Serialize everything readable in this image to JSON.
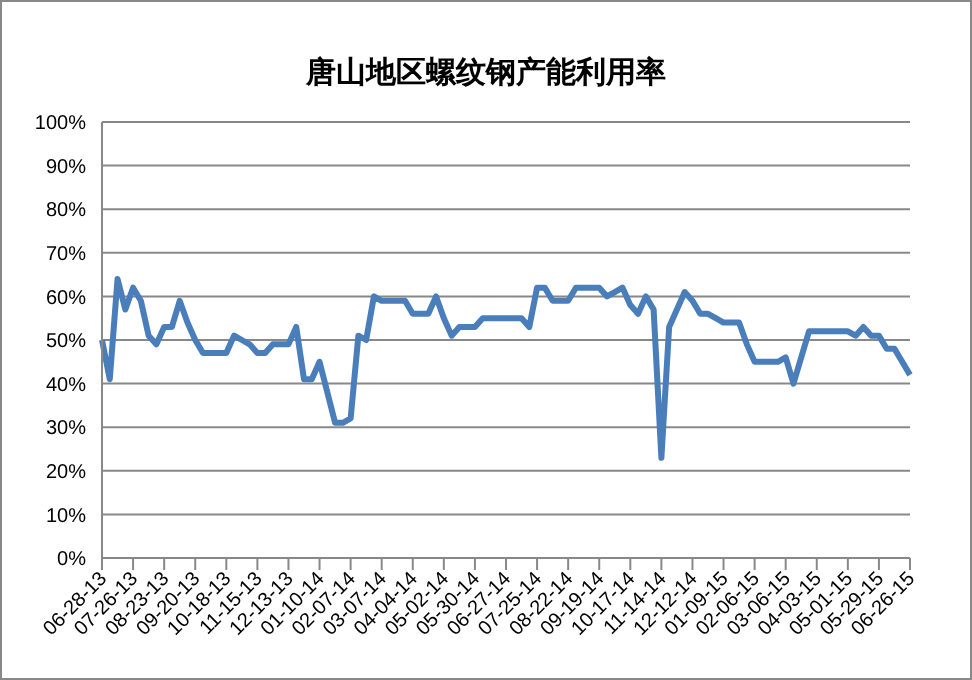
{
  "chart_data": {
    "type": "line",
    "title": "唐山地区螺纹钢产能利用率",
    "categories": [
      "06-28-13",
      null,
      null,
      null,
      "07-26-13",
      null,
      null,
      null,
      "08-23-13",
      null,
      null,
      null,
      "09-20-13",
      null,
      null,
      null,
      "10-18-13",
      null,
      null,
      null,
      "11-15-13",
      null,
      null,
      null,
      "12-13-13",
      null,
      null,
      null,
      "01-10-14",
      null,
      null,
      null,
      "02-07-14",
      null,
      null,
      null,
      "03-07-14",
      null,
      null,
      null,
      "04-04-14",
      null,
      null,
      null,
      "05-02-14",
      null,
      null,
      null,
      "05-30-14",
      null,
      null,
      null,
      "06-27-14",
      null,
      null,
      null,
      "07-25-14",
      null,
      null,
      null,
      "08-22-14",
      null,
      null,
      null,
      "09-19-14",
      null,
      null,
      null,
      "10-17-14",
      null,
      null,
      null,
      "11-14-14",
      null,
      null,
      null,
      "12-12-14",
      null,
      null,
      null,
      "01-09-15",
      null,
      null,
      null,
      "02-06-15",
      null,
      null,
      null,
      "03-06-15",
      null,
      null,
      null,
      "04-03-15",
      null,
      null,
      null,
      "05-01-15",
      null,
      null,
      null,
      "05-29-15",
      null,
      null,
      null,
      "06-26-15"
    ],
    "series": [
      {
        "color": "#4a7ebb",
        "values": [
          50,
          41,
          64,
          57,
          62,
          59,
          51,
          49,
          53,
          53,
          59,
          54,
          50,
          47,
          47,
          47,
          47,
          51,
          50,
          49,
          47,
          47,
          49,
          49,
          49,
          53,
          41,
          41,
          45,
          38,
          31,
          31,
          32,
          51,
          50,
          60,
          59,
          59,
          59,
          59,
          56,
          56,
          56,
          60,
          55,
          51,
          53,
          53,
          53,
          55,
          55,
          55,
          55,
          55,
          55,
          53,
          62,
          62,
          59,
          59,
          59,
          62,
          62,
          62,
          62,
          60,
          61,
          62,
          58,
          56,
          60,
          57,
          23,
          53,
          57,
          61,
          59,
          56,
          56,
          55,
          54,
          54,
          54,
          49,
          45,
          45,
          45,
          45,
          46,
          40,
          46,
          52,
          52,
          52,
          52,
          52,
          52,
          51,
          53,
          51,
          51,
          48,
          48,
          45,
          42
        ]
      }
    ],
    "ylim": [
      0,
      100
    ],
    "yticks": [
      {
        "value": 0,
        "label": "0%"
      },
      {
        "value": 10,
        "label": "10%"
      },
      {
        "value": 20,
        "label": "20%"
      },
      {
        "value": 30,
        "label": "30%"
      },
      {
        "value": 40,
        "label": "40%"
      },
      {
        "value": 50,
        "label": "50%"
      },
      {
        "value": 60,
        "label": "60%"
      },
      {
        "value": 70,
        "label": "70%"
      },
      {
        "value": 80,
        "label": "80%"
      },
      {
        "value": 90,
        "label": "90%"
      },
      {
        "value": 100,
        "label": "100%"
      }
    ],
    "grid": "y",
    "legend": false,
    "marker": "none",
    "line_style": "solid"
  }
}
